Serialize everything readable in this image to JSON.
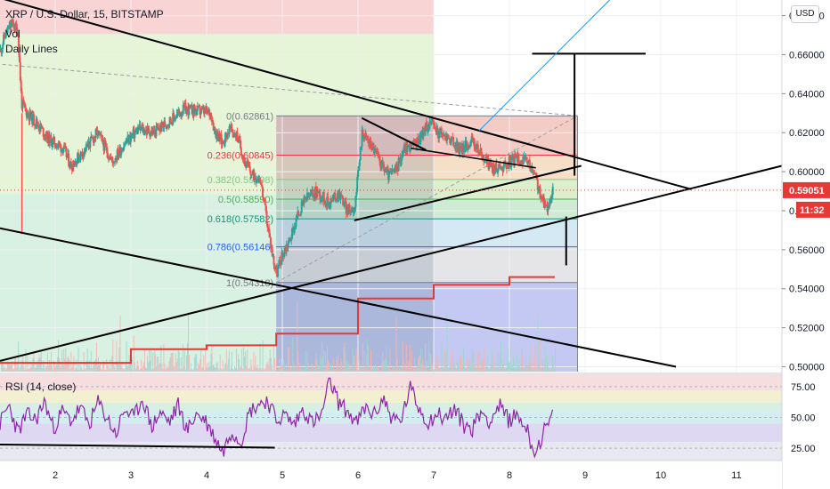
{
  "header": {
    "symbol_line": "XRP / U.S. Dollar, 15, BITSTAMP",
    "vol_label": "Vol",
    "daily_lines_label": "Daily Lines",
    "rsi_label": "RSI (14, close)",
    "currency_button": "USD"
  },
  "colors": {
    "candle_up": "#26a69a",
    "candle_down": "#ef5350",
    "rsi_line": "#8e24aa",
    "daily_line": "#e53935",
    "price_marker": "#e53935",
    "time_marker": "#e53935",
    "trend_lines": "#000000",
    "blue_line": "#2196f3",
    "fib_dashed": "#9e9e9e"
  },
  "chart_data": [
    {
      "type": "candlestick",
      "title": "XRP / U.S. Dollar, 15, BITSTAMP",
      "x_ticks": [
        "2",
        "3",
        "4",
        "5",
        "6",
        "7",
        "8",
        "9",
        "10",
        "11"
      ],
      "y_ticks": [
        "0.50000",
        "0.52000",
        "0.54000",
        "0.56000",
        "0.58000",
        "0.60000",
        "0.62000",
        "0.64000",
        "0.66000",
        "0.68000"
      ],
      "ylim": [
        0.4975,
        0.688
      ],
      "xlim": [
        1.27,
        11.6
      ],
      "last_price_label": "0.59051",
      "last_price": 0.59051,
      "time_marker_label": "11:32",
      "price_points": [
        [
          1.27,
          0.662
        ],
        [
          1.33,
          0.67
        ],
        [
          1.42,
          0.676
        ],
        [
          1.5,
          0.672
        ],
        [
          1.55,
          0.635
        ],
        [
          1.62,
          0.63
        ],
        [
          1.75,
          0.625
        ],
        [
          1.9,
          0.617
        ],
        [
          2.1,
          0.612
        ],
        [
          2.2,
          0.603
        ],
        [
          2.4,
          0.612
        ],
        [
          2.55,
          0.62
        ],
        [
          2.75,
          0.605
        ],
        [
          2.9,
          0.614
        ],
        [
          3.1,
          0.622
        ],
        [
          3.3,
          0.62
        ],
        [
          3.5,
          0.626
        ],
        [
          3.7,
          0.632
        ],
        [
          3.9,
          0.631
        ],
        [
          4.05,
          0.63
        ],
        [
          4.1,
          0.621
        ],
        [
          4.2,
          0.615
        ],
        [
          4.3,
          0.622
        ],
        [
          4.4,
          0.618
        ],
        [
          4.5,
          0.605
        ],
        [
          4.6,
          0.598
        ],
        [
          4.7,
          0.597
        ],
        [
          4.8,
          0.572
        ],
        [
          4.87,
          0.556
        ],
        [
          4.92,
          0.548
        ],
        [
          5.0,
          0.558
        ],
        [
          5.1,
          0.566
        ],
        [
          5.2,
          0.578
        ],
        [
          5.3,
          0.586
        ],
        [
          5.45,
          0.59
        ],
        [
          5.6,
          0.584
        ],
        [
          5.75,
          0.589
        ],
        [
          5.85,
          0.58
        ],
        [
          5.95,
          0.582
        ],
        [
          6.0,
          0.6
        ],
        [
          6.05,
          0.621
        ],
        [
          6.1,
          0.617
        ],
        [
          6.2,
          0.612
        ],
        [
          6.3,
          0.604
        ],
        [
          6.4,
          0.598
        ],
        [
          6.5,
          0.601
        ],
        [
          6.6,
          0.612
        ],
        [
          6.75,
          0.614
        ],
        [
          6.85,
          0.62
        ],
        [
          6.95,
          0.626
        ],
        [
          7.05,
          0.62
        ],
        [
          7.2,
          0.617
        ],
        [
          7.35,
          0.611
        ],
        [
          7.5,
          0.616
        ],
        [
          7.6,
          0.61
        ],
        [
          7.7,
          0.605
        ],
        [
          7.8,
          0.601
        ],
        [
          7.95,
          0.604
        ],
        [
          8.1,
          0.607
        ],
        [
          8.25,
          0.604
        ],
        [
          8.35,
          0.596
        ],
        [
          8.42,
          0.585
        ],
        [
          8.5,
          0.582
        ],
        [
          8.57,
          0.59
        ]
      ],
      "fibonacci": [
        {
          "ratio_label": "0",
          "value_label": "0.62861",
          "ratio": 0,
          "price": 0.62861,
          "color": "#787b86"
        },
        {
          "ratio_label": "0.236",
          "value_label": "0.60845",
          "ratio": 0.236,
          "price": 0.60845,
          "color": "#f23645"
        },
        {
          "ratio_label": "0.382",
          "value_label": "0.59598",
          "ratio": 0.382,
          "price": 0.59598,
          "color": "#81c784"
        },
        {
          "ratio_label": "0.5",
          "value_label": "0.58590",
          "ratio": 0.5,
          "price": 0.5859,
          "color": "#4caf50"
        },
        {
          "ratio_label": "0.618",
          "value_label": "0.57582",
          "ratio": 0.618,
          "price": 0.57582,
          "color": "#089981"
        },
        {
          "ratio_label": "0.786",
          "value_label": "0.56146",
          "ratio": 0.786,
          "price": 0.56146,
          "color": "#2962ff"
        },
        {
          "ratio_label": "1",
          "value_label": "0.54318",
          "ratio": 1,
          "price": 0.54318,
          "color": "#787b86"
        }
      ],
      "daily_lines_steps": [
        [
          1.27,
          0.502
        ],
        [
          3.0,
          0.502
        ],
        [
          3.0,
          0.509
        ],
        [
          4.0,
          0.509
        ],
        [
          4.0,
          0.511
        ],
        [
          4.92,
          0.511
        ],
        [
          4.92,
          0.517
        ],
        [
          6.0,
          0.517
        ],
        [
          6.0,
          0.535
        ],
        [
          7.0,
          0.535
        ],
        [
          7.0,
          0.542
        ],
        [
          8.0,
          0.542
        ],
        [
          8.0,
          0.546
        ],
        [
          8.6,
          0.546
        ]
      ]
    },
    {
      "type": "line",
      "title": "RSI (14, close)",
      "y_ticks": [
        "25.00",
        "50.00",
        "75.00"
      ],
      "ylim": [
        15,
        85
      ],
      "series": [
        {
          "name": "RSI (14, close)",
          "values": [
            45,
            60,
            38,
            52,
            48,
            63,
            41,
            55,
            47,
            58,
            44,
            62,
            50,
            36,
            57,
            49,
            66,
            42,
            54,
            46,
            60,
            39,
            53,
            48,
            35,
            22,
            40,
            30,
            55,
            61,
            64,
            48,
            52,
            44,
            57,
            46,
            50,
            80,
            62,
            55,
            45,
            58,
            52,
            66,
            49,
            47,
            74,
            58,
            46,
            53,
            49,
            57,
            44,
            41,
            55,
            47,
            60,
            48,
            52,
            43,
            20,
            38,
            50
          ]
        }
      ]
    }
  ]
}
